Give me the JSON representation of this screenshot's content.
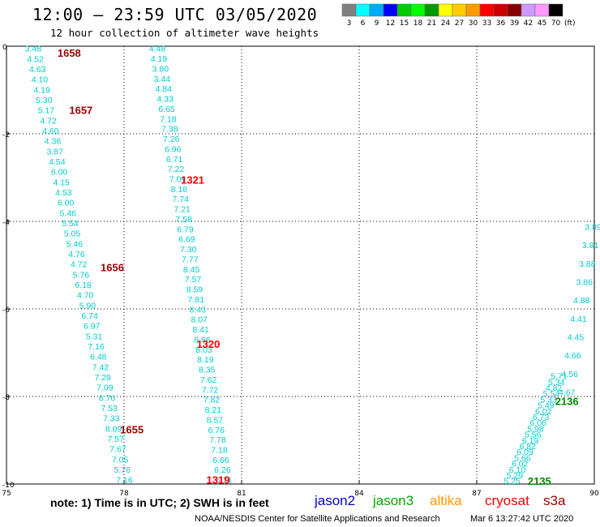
{
  "header": {
    "title": "12:00 – 23:59 UTC 03/05/2020",
    "subtitle": "12 hour collection of altimeter wave heights"
  },
  "footer": {
    "note": "note: 1) Time is in UTC; 2) SWH is in feet",
    "credit": "NOAA/NESDIS Center for Satellite Applications and Research",
    "date": "Mar  6 13:27:42 UTC 2020"
  },
  "satellites": [
    {
      "name": "jason2",
      "color": "#0000cc"
    },
    {
      "name": "jason3",
      "color": "#00aa00"
    },
    {
      "name": "altika",
      "color": "#ff9900"
    },
    {
      "name": "cryosat",
      "color": "#ff0000"
    },
    {
      "name": "s3a",
      "color": "#990000"
    }
  ],
  "colors": {
    "text_cyan": "#00cccc",
    "s3a": "#990000",
    "cryosat": "#ff0000",
    "jason3": "#008800"
  },
  "chart_data": {
    "type": "scatter",
    "xlim": [
      75,
      90
    ],
    "ylim": [
      -10,
      0
    ],
    "x_ticks": [
      75,
      78,
      81,
      84,
      87,
      90
    ],
    "y_ticks": [
      0,
      -2,
      -4,
      -6,
      -8,
      -10
    ],
    "grid": true,
    "legend": {
      "labels": [
        "3",
        "6",
        "9",
        "12",
        "15",
        "18",
        "21",
        "24",
        "27",
        "30",
        "33",
        "36",
        "39",
        "42",
        "45",
        "70"
      ],
      "unit": "(ft)",
      "colors": [
        "#808080",
        "#00ffff",
        "#00aaff",
        "#0000ff",
        "#00cc00",
        "#00ff00",
        "#009900",
        "#ffff00",
        "#ffcc00",
        "#ff9900",
        "#ff0000",
        "#cc0000",
        "#880000",
        "#cc99ff",
        "#ff99ff",
        "#000000"
      ]
    },
    "tracks": [
      {
        "label_color": "#00cccc",
        "x_start": 75.68,
        "x_end": 78.01,
        "values": [
          3.48,
          4.52,
          4.63,
          4.1,
          4.19,
          5.3,
          5.17,
          4.72,
          4.6,
          4.36,
          3.87,
          4.54,
          6.0,
          4.15,
          4.53,
          6.0,
          5.46,
          5.54,
          5.05,
          5.46,
          4.76,
          4.72,
          5.76,
          6.18,
          4.7,
          5.9,
          6.74,
          6.97,
          5.31,
          7.16,
          6.48,
          7.42,
          7.29,
          7.09,
          6.7,
          7.53,
          7.33,
          8.09,
          7.57,
          7.67,
          7.05,
          5.76,
          7.16
        ]
      },
      {
        "label_color": "#00cccc",
        "x_start": 78.85,
        "x_end": 80.55,
        "values": [
          4.48,
          4.19,
          3.8,
          3.44,
          4.84,
          4.33,
          6.65,
          7.18,
          7.38,
          7.26,
          6.96,
          6.71,
          7.22,
          7.09,
          8.18,
          7.74,
          7.21,
          7.58,
          6.79,
          6.69,
          7.3,
          7.77,
          8.45,
          7.57,
          8.59,
          7.81,
          8.43,
          8.07,
          8.41,
          8.66,
          8.03,
          8.19,
          8.35,
          7.62,
          7.72,
          7.82,
          8.21,
          8.57,
          6.76,
          7.78,
          7.18,
          6.66,
          6.26,
          6.71
        ]
      },
      {
        "label_color": "#00cccc",
        "x_start": 89.97,
        "x_end": 89.3,
        "y_start": -4.12,
        "y_end": -7.9,
        "values": [
          3.89,
          3.81,
          3.88,
          3.86,
          4.88,
          4.41,
          4.45,
          4.66,
          4.56,
          4.67
        ]
      },
      {
        "label_color": "#00cccc",
        "x_start": 89.1,
        "x_end": 87.9,
        "y_start": -7.53,
        "y_end": -9.93,
        "values": [
          5.71,
          5.34,
          4.82,
          5.54,
          5.33,
          5.49,
          6.02,
          6.73,
          6.06,
          5.98,
          5.56,
          6.19,
          6.82,
          6.09,
          5.66,
          6.02,
          6.1,
          5.29,
          5.25
        ]
      }
    ],
    "time_labels": [
      {
        "text": "1658",
        "x": 76.6,
        "y": -0.15,
        "color": "#990000"
      },
      {
        "text": "1657",
        "x": 76.9,
        "y": -1.45,
        "color": "#990000"
      },
      {
        "text": "1656",
        "x": 77.7,
        "y": -5.05,
        "color": "#990000"
      },
      {
        "text": "1655",
        "x": 78.2,
        "y": -8.75,
        "color": "#990000"
      },
      {
        "text": "1321",
        "x": 79.75,
        "y": -3.05,
        "color": "#ff0000"
      },
      {
        "text": "1320",
        "x": 80.15,
        "y": -6.8,
        "color": "#ff0000"
      },
      {
        "text": "1319",
        "x": 80.4,
        "y": -9.9,
        "color": "#ff0000"
      },
      {
        "text": "2136",
        "x": 89.3,
        "y": -8.1,
        "color": "#008800"
      },
      {
        "text": "2135",
        "x": 88.6,
        "y": -9.93,
        "color": "#008800"
      }
    ]
  }
}
